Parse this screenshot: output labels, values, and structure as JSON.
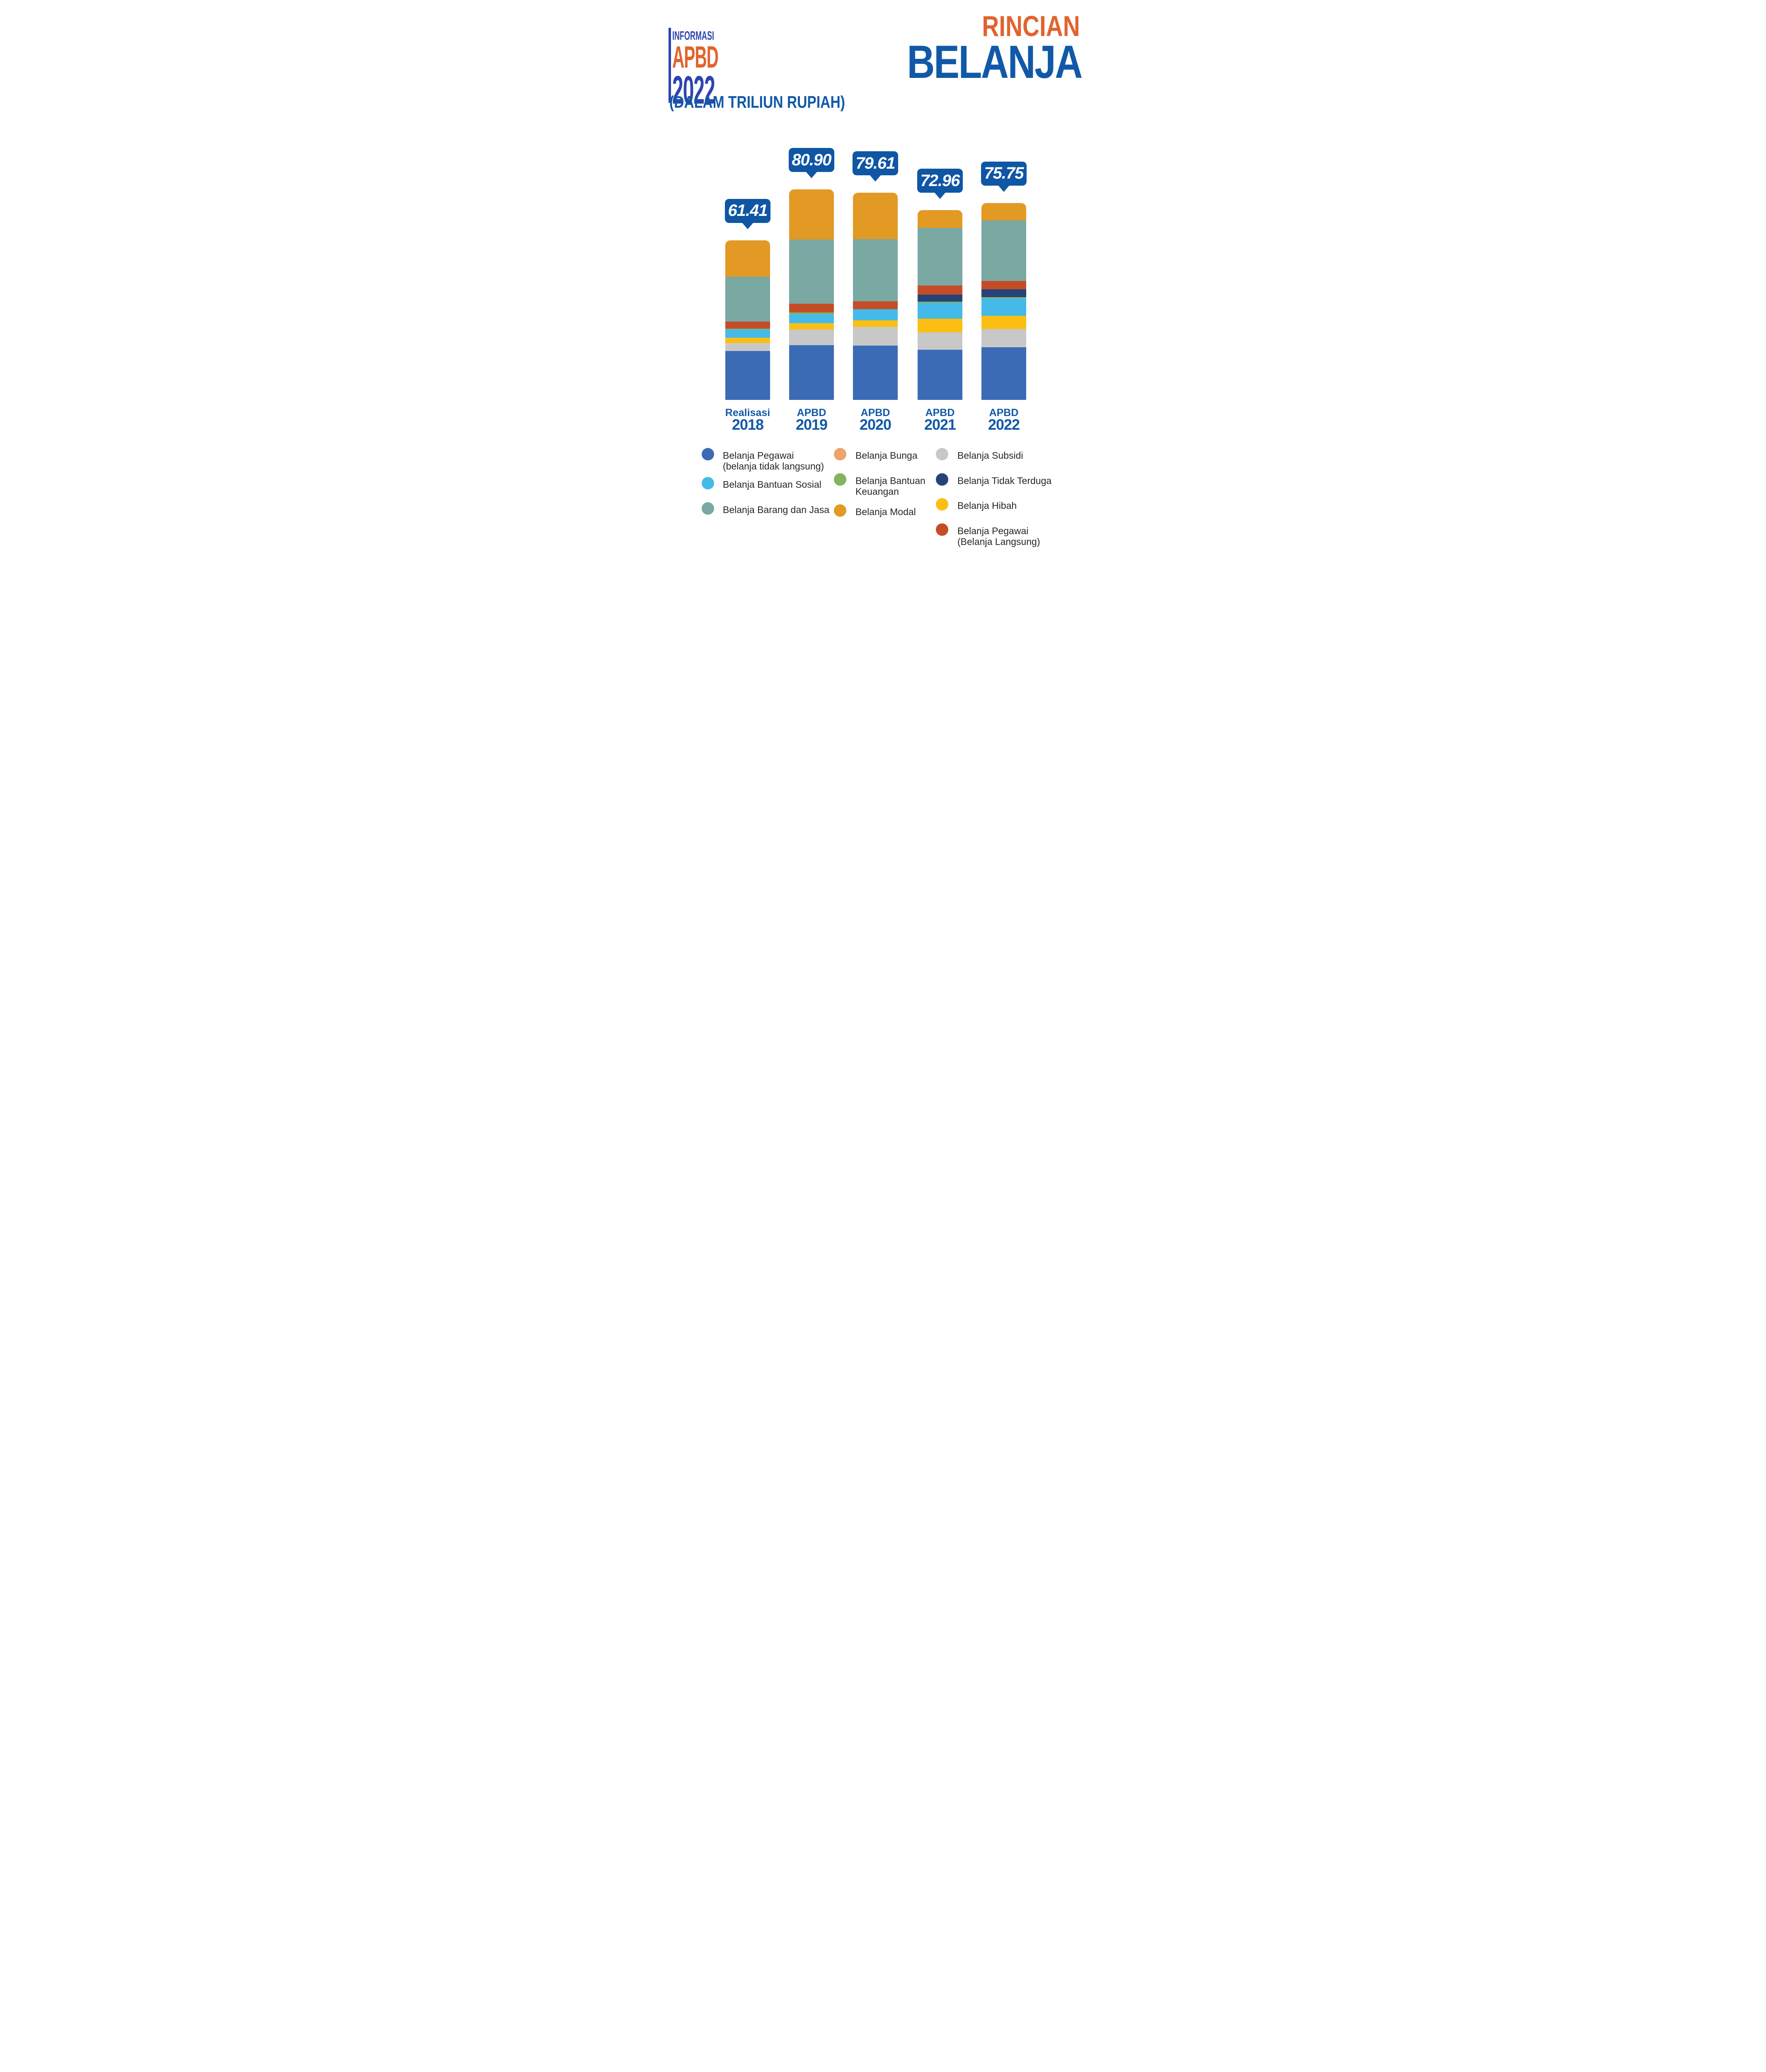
{
  "logo": {
    "line1": "INFORMASI",
    "line2": "APBD",
    "line3": "2022"
  },
  "title": {
    "line1": "RINCIAN",
    "line2": "BELANJA"
  },
  "subtitle": "(DALAM TRILIUN RUPIAH)",
  "colors": {
    "background": "#FFFFFF",
    "logo_blue": "#2E44AE",
    "title_orange": "#E2632E",
    "title_blue": "#1159A8",
    "callout_bg": "#0F56A4",
    "callout_text": "#FFFFFF",
    "axis_label": "#1159A8",
    "legend_text": "#262626"
  },
  "chart_data": {
    "type": "bar",
    "stacked": true,
    "unit": "triliun rupiah",
    "grid": false,
    "legend_position": "bottom",
    "categories": [
      {
        "prefix": "Realisasi",
        "year": "2018"
      },
      {
        "prefix": "APBD",
        "year": "2019"
      },
      {
        "prefix": "APBD",
        "year": "2020"
      },
      {
        "prefix": "APBD",
        "year": "2021"
      },
      {
        "prefix": "APBD",
        "year": "2022"
      }
    ],
    "totals": [
      61.41,
      80.9,
      79.61,
      72.96,
      75.75
    ],
    "value_labels": [
      "61.41",
      "80.90",
      "79.61",
      "72.96",
      "75.75"
    ],
    "series": [
      {
        "key": "pegawai_tidak_langsung",
        "name": "Belanja Pegawai (belanja tidak langsung)",
        "color": "#3B6BB5",
        "values": [
          18.77,
          20.95,
          20.82,
          19.28,
          20.22
        ]
      },
      {
        "key": "subsidi",
        "name": "Belanja Subsidi",
        "color": "#C8C8C8",
        "values": [
          3.13,
          6.2,
          7.23,
          6.75,
          7.01
        ]
      },
      {
        "key": "hibah",
        "name": "Belanja Hibah",
        "color": "#FBBF14",
        "values": [
          1.95,
          2.33,
          2.6,
          5.14,
          5.19
        ]
      },
      {
        "key": "bantuan_sosial",
        "name": "Belanja Bantuan Sosial",
        "color": "#45BAE8",
        "values": [
          3.21,
          3.49,
          4.32,
          6.08,
          6.63
        ]
      },
      {
        "key": "bantuan_keuangan",
        "name": "Belanja Bantuan Keuangan",
        "color": "#83B460",
        "values": [
          0.31,
          0.62,
          0,
          0.51,
          0.53
        ]
      },
      {
        "key": "tidak_terduga",
        "name": "Belanja Tidak Terduga",
        "color": "#254379",
        "values": [
          0,
          0,
          0,
          2.79,
          2.9
        ]
      },
      {
        "key": "pegawai_langsung",
        "name": "Belanja Pegawai (Belanja Langsung)",
        "color": "#C44D28",
        "values": [
          2.74,
          3.41,
          2.99,
          3.44,
          3.28
        ]
      },
      {
        "key": "barang_jasa",
        "name": "Belanja Barang dan Jasa",
        "color": "#7AA8A3",
        "values": [
          17.22,
          24.66,
          23.89,
          22.22,
          23.27
        ]
      },
      {
        "key": "modal",
        "name": "Belanja Modal",
        "color": "#E29A25",
        "values": [
          14.08,
          19.24,
          17.76,
          6.75,
          6.72
        ]
      },
      {
        "key": "bunga",
        "name": "Belanja Bunga",
        "color": "#EDA36C",
        "values": [
          0,
          0,
          0,
          0,
          0
        ]
      }
    ]
  },
  "legend": {
    "columns": [
      [
        {
          "key": "pegawai_tidak_langsung",
          "lines": [
            "Belanja Pegawai",
            "(belanja tidak langsung)"
          ]
        },
        {
          "key": "bantuan_sosial",
          "lines": [
            "Belanja Bantuan Sosial"
          ]
        },
        {
          "key": "barang_jasa",
          "lines": [
            "Belanja Barang dan Jasa"
          ]
        }
      ],
      [
        {
          "key": "bunga",
          "lines": [
            "Belanja Bunga"
          ]
        },
        {
          "key": "bantuan_keuangan",
          "lines": [
            "Belanja Bantuan",
            "Keuangan"
          ]
        },
        {
          "key": "modal",
          "lines": [
            "Belanja Modal"
          ]
        }
      ],
      [
        {
          "key": "subsidi",
          "lines": [
            "Belanja Subsidi"
          ]
        },
        {
          "key": "tidak_terduga",
          "lines": [
            "Belanja Tidak Terduga"
          ]
        },
        {
          "key": "hibah",
          "lines": [
            "Belanja Hibah"
          ]
        },
        {
          "key": "pegawai_langsung",
          "lines": [
            "Belanja Pegawai",
            "(Belanja Langsung)"
          ]
        }
      ]
    ]
  }
}
